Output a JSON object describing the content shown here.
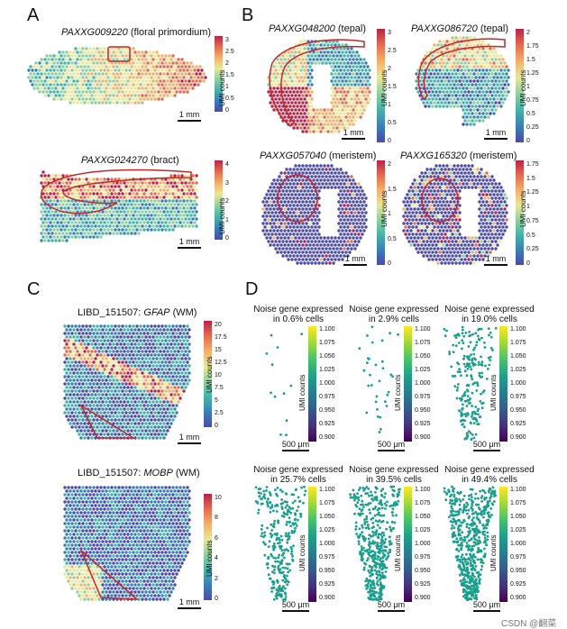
{
  "panels": {
    "A": {
      "letter": "A",
      "plots": [
        {
          "gene": "PAXXG009220",
          "desc": " (floral primordium)",
          "ticks": [
            "3",
            "2.5",
            "2",
            "1.5",
            "1",
            "0.5",
            "0"
          ],
          "cbar_label": "UMI counts",
          "scale": "1 mm"
        },
        {
          "gene": "PAXXG024270",
          "desc": " (bract)",
          "ticks": [
            "4",
            "3",
            "2",
            "1",
            "0"
          ],
          "cbar_label": "UMI counts",
          "scale": "1 mm"
        }
      ]
    },
    "B": {
      "letter": "B",
      "plots": [
        {
          "gene": "PAXXG048200",
          "desc": " (tepal)",
          "ticks": [
            "3",
            "2.5",
            "2",
            "1.5",
            "1",
            "0.5",
            "0"
          ],
          "cbar_label": "UMI counts",
          "scale": "1 mm"
        },
        {
          "gene": "PAXXG086720",
          "desc": " (tepal)",
          "ticks": [
            "2",
            "1.75",
            "1.5",
            "1.25",
            "1",
            "0.75",
            "0.5",
            "0.25",
            "0"
          ],
          "cbar_label": "UMI counts",
          "scale": "1 mm"
        },
        {
          "gene": "PAXXG057040",
          "desc": " (meristem)",
          "ticks": [
            "2",
            "1.5",
            "1",
            "0.5",
            "0"
          ],
          "cbar_label": "UMI counts",
          "scale": "1 mm"
        },
        {
          "gene": "PAXXG165320",
          "desc": " (meristem)",
          "ticks": [
            "1.75",
            "1.5",
            "1.25",
            "1",
            "0.75",
            "0.5",
            "0.25",
            "0"
          ],
          "cbar_label": "UMI counts",
          "scale": "1 mm"
        }
      ]
    },
    "C": {
      "letter": "C",
      "plots": [
        {
          "prefix": "LIBD_151507: ",
          "gene": "GFAP",
          "suffix": " (WM)",
          "ticks": [
            "20",
            "17.5",
            "15",
            "12.5",
            "10",
            "7.5",
            "5",
            "2.5",
            "0"
          ],
          "cbar_label": "UMI counts",
          "scale": "1 mm"
        },
        {
          "prefix": "LIBD_151507: ",
          "gene": "MOBP",
          "suffix": " (WM)",
          "ticks": [
            "10",
            "8",
            "6",
            "4",
            "2",
            "0"
          ],
          "cbar_label": "UMI counts",
          "scale": "1 mm"
        }
      ]
    },
    "D": {
      "letter": "D",
      "title_line1": "Noise gene expressed",
      "ticks": [
        "1.100",
        "1.075",
        "1.050",
        "1.025",
        "1.000",
        "0.975",
        "0.950",
        "0.925",
        "0.900"
      ],
      "cbar_label": "UMI counts",
      "scale": "500 μm",
      "plots": [
        {
          "line2": "in  0.6% cells",
          "fraction": 0.006
        },
        {
          "line2": "in 2.9% cells",
          "fraction": 0.029
        },
        {
          "line2": "in  19.0% cells",
          "fraction": 0.19
        },
        {
          "line2": "in  25.7% cells",
          "fraction": 0.257
        },
        {
          "line2": "in  39.5% cells",
          "fraction": 0.395
        },
        {
          "line2": "in  49.4% cells",
          "fraction": 0.494
        }
      ]
    }
  },
  "watermark": "CSDN @翻菜"
}
